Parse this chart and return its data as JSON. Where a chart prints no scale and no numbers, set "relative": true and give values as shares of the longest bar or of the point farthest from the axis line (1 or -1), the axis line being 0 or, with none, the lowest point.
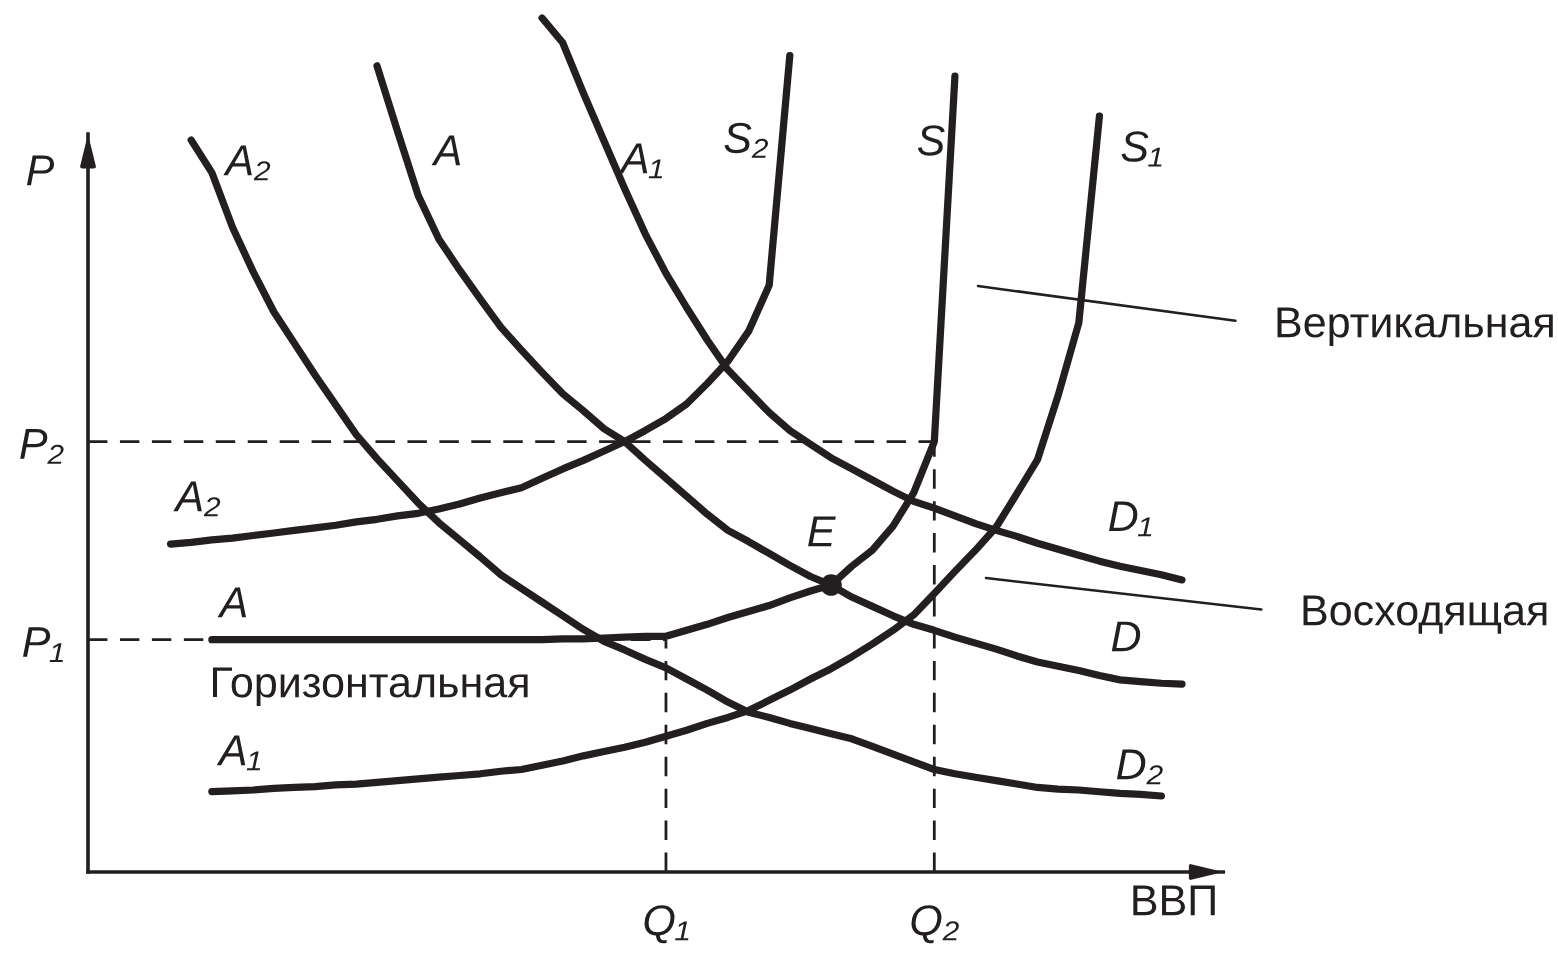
{
  "chart_data": {
    "type": "line",
    "xlabel": "ВВП",
    "ylabel": "P",
    "relative": true,
    "categories": [
      null,
      null,
      null,
      null,
      null,
      null,
      null,
      null,
      null,
      null,
      null,
      null,
      null,
      null,
      null,
      null,
      null,
      null,
      null,
      null,
      null,
      null,
      null,
      null,
      null,
      null,
      null,
      null,
      "Q₁",
      null,
      null,
      null,
      null,
      null,
      null,
      null,
      null,
      null,
      null,
      null,
      null,
      "Q₂",
      null,
      null,
      null,
      null,
      null,
      null,
      null,
      null,
      null,
      null,
      null,
      null,
      null,
      null
    ],
    "series": [
      {
        "name": "S₂",
        "color": "#231f20",
        "values": [
          null,
          null,
          null,
          null,
          0.384,
          0.386,
          0.389,
          0.391,
          0.394,
          0.397,
          0.4,
          0.403,
          0.406,
          0.41,
          0.413,
          0.417,
          0.42,
          0.425,
          0.431,
          0.438,
          0.444,
          0.45,
          0.461,
          0.472,
          0.482,
          0.493,
          0.504,
          0.517,
          0.531,
          0.548,
          0.572,
          0.598,
          0.633,
          0.687,
          0.956,
          null,
          null,
          null,
          null,
          null,
          null,
          null,
          null,
          null,
          null,
          null,
          null,
          null,
          null,
          null,
          null,
          null,
          null,
          null,
          null,
          null
        ]
      },
      {
        "name": "S",
        "color": "#231f20",
        "values": [
          null,
          null,
          null,
          null,
          null,
          null,
          0.272,
          0.272,
          0.272,
          0.272,
          0.272,
          0.272,
          0.272,
          0.272,
          0.272,
          0.272,
          0.272,
          0.272,
          0.272,
          0.272,
          0.272,
          0.272,
          0.272,
          0.273,
          0.273,
          0.274,
          0.275,
          0.276,
          0.276,
          0.283,
          0.29,
          0.298,
          0.305,
          0.312,
          0.321,
          0.329,
          0.336,
          0.358,
          0.377,
          0.405,
          0.444,
          0.504,
          0.932,
          null,
          null,
          null,
          null,
          null,
          null,
          null,
          null,
          null,
          null,
          null,
          null,
          null
        ]
      },
      {
        "name": "S₁",
        "color": "#231f20",
        "values": [
          null,
          null,
          null,
          null,
          null,
          null,
          0.094,
          0.095,
          0.096,
          0.098,
          0.099,
          0.1,
          0.102,
          0.103,
          0.105,
          0.107,
          0.109,
          0.111,
          0.113,
          0.115,
          0.118,
          0.12,
          0.125,
          0.13,
          0.136,
          0.141,
          0.146,
          0.152,
          0.159,
          0.166,
          0.174,
          0.181,
          0.189,
          0.201,
          0.213,
          0.226,
          0.238,
          0.252,
          0.267,
          0.283,
          0.301,
          0.326,
          0.352,
          0.377,
          0.404,
          0.443,
          0.483,
          0.558,
          0.643,
          0.885,
          null,
          null,
          null,
          null,
          null,
          null
        ]
      },
      {
        "name": "D₂",
        "color": "#231f20",
        "values": [
          null,
          null,
          null,
          null,
          null,
          0.857,
          0.819,
          0.755,
          0.703,
          0.656,
          0.619,
          0.582,
          0.547,
          0.512,
          0.484,
          0.458,
          0.432,
          0.409,
          0.389,
          0.369,
          0.348,
          0.332,
          0.316,
          0.3,
          0.284,
          0.27,
          0.26,
          0.249,
          0.239,
          0.226,
          0.213,
          0.199,
          0.187,
          0.181,
          0.174,
          0.168,
          0.162,
          0.156,
          0.147,
          0.138,
          0.129,
          0.12,
          0.115,
          0.111,
          0.107,
          0.103,
          0.099,
          0.097,
          0.096,
          0.094,
          0.092,
          0.091,
          0.089,
          null,
          null,
          null
        ]
      },
      {
        "name": "D",
        "color": "#231f20",
        "values": [
          null,
          null,
          null,
          null,
          null,
          null,
          null,
          null,
          null,
          null,
          null,
          null,
          null,
          null,
          0.944,
          0.867,
          0.792,
          0.741,
          0.705,
          0.671,
          0.638,
          0.611,
          0.585,
          0.56,
          0.54,
          0.519,
          0.504,
          0.482,
          0.461,
          0.44,
          0.419,
          0.4,
          0.387,
          0.373,
          0.359,
          0.346,
          0.336,
          0.322,
          0.311,
          0.3,
          0.29,
          0.283,
          0.275,
          0.268,
          0.261,
          0.253,
          0.246,
          0.241,
          0.236,
          0.23,
          0.225,
          0.223,
          0.221,
          0.22,
          null,
          null
        ]
      },
      {
        "name": "D₁",
        "color": "#231f20",
        "values": [
          null,
          null,
          null,
          null,
          null,
          null,
          null,
          null,
          null,
          null,
          null,
          null,
          null,
          null,
          null,
          null,
          null,
          null,
          null,
          null,
          null,
          null,
          1.0,
          0.971,
          0.912,
          0.856,
          0.8,
          0.747,
          0.701,
          0.661,
          0.623,
          0.588,
          0.563,
          0.538,
          0.517,
          0.501,
          0.485,
          0.472,
          0.459,
          0.446,
          0.434,
          0.426,
          0.417,
          0.408,
          0.4,
          0.393,
          0.385,
          0.378,
          0.371,
          0.364,
          0.358,
          0.353,
          0.348,
          0.342,
          null,
          null
        ]
      },
      {
        "name": "E",
        "type": "scatter",
        "marker": "circle",
        "color": "#231f20",
        "values": [
          null,
          null,
          null,
          null,
          null,
          null,
          null,
          null,
          null,
          null,
          null,
          null,
          null,
          null,
          null,
          null,
          null,
          null,
          null,
          null,
          null,
          null,
          null,
          null,
          null,
          null,
          null,
          null,
          null,
          null,
          null,
          null,
          null,
          null,
          null,
          null,
          0.336,
          null,
          null,
          null,
          null,
          null,
          null,
          null,
          null,
          null,
          null,
          null,
          null,
          null,
          null,
          null,
          null,
          null,
          null,
          null
        ]
      }
    ],
    "ref_lines": [
      {
        "axis": "y",
        "value": 0.272,
        "label": "P₁",
        "color": "#231f20",
        "line_style": "dashed"
      },
      {
        "axis": "y",
        "value": 0.504,
        "label": "P₂",
        "color": "#231f20",
        "line_style": "dashed"
      },
      {
        "axis": "x",
        "value": "Q₁",
        "color": "#231f20",
        "line_style": "dashed"
      },
      {
        "axis": "x",
        "value": "Q₂",
        "color": "#231f20",
        "line_style": "dashed"
      }
    ],
    "annotations": [
      "A₂",
      "A",
      "A₁",
      "A₂",
      "A",
      "A₁",
      "Горизонтальная",
      "Вертикальная",
      "Восходящая"
    ]
  }
}
